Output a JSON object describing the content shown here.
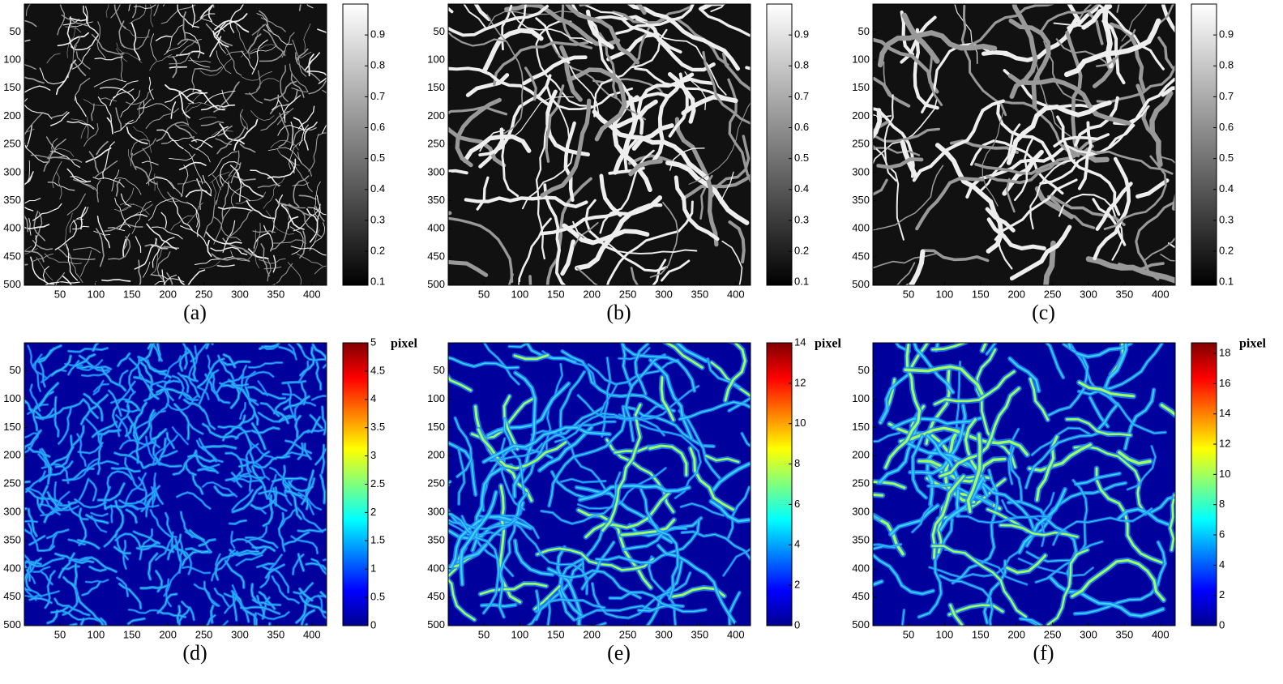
{
  "chart_data": [
    {
      "type": "heatmap",
      "label": "(a)",
      "colormap": "gray",
      "xlim": [
        0.5,
        420.5
      ],
      "ylim": [
        0.5,
        500.5
      ],
      "xticks": [
        50,
        100,
        150,
        200,
        250,
        300,
        350,
        400
      ],
      "yticks": [
        50,
        100,
        150,
        200,
        250,
        300,
        350,
        400,
        450,
        500
      ],
      "clim": [
        0.09,
        1
      ],
      "cticks": [
        0.1,
        0.2,
        0.3,
        0.4,
        0.5,
        0.6,
        0.7,
        0.8,
        0.9
      ]
    },
    {
      "type": "heatmap",
      "label": "(b)",
      "colormap": "gray",
      "xlim": [
        0.5,
        420.5
      ],
      "ylim": [
        0.5,
        500.5
      ],
      "xticks": [
        50,
        100,
        150,
        200,
        250,
        300,
        350,
        400
      ],
      "yticks": [
        50,
        100,
        150,
        200,
        250,
        300,
        350,
        400,
        450,
        500
      ],
      "clim": [
        0.09,
        1
      ],
      "cticks": [
        0.1,
        0.2,
        0.3,
        0.4,
        0.5,
        0.6,
        0.7,
        0.8,
        0.9
      ]
    },
    {
      "type": "heatmap",
      "label": "(c)",
      "colormap": "gray",
      "xlim": [
        0.5,
        420.5
      ],
      "ylim": [
        0.5,
        500.5
      ],
      "xticks": [
        50,
        100,
        150,
        200,
        250,
        300,
        350,
        400
      ],
      "yticks": [
        50,
        100,
        150,
        200,
        250,
        300,
        350,
        400,
        450,
        500
      ],
      "clim": [
        0.09,
        1
      ],
      "cticks": [
        0.1,
        0.2,
        0.3,
        0.4,
        0.5,
        0.6,
        0.7,
        0.8,
        0.9
      ]
    },
    {
      "type": "heatmap",
      "label": "(d)",
      "colormap": "jet",
      "colorbar_label": "pixel",
      "xlim": [
        0.5,
        420.5
      ],
      "ylim": [
        0.5,
        500.5
      ],
      "xticks": [
        50,
        100,
        150,
        200,
        250,
        300,
        350,
        400
      ],
      "yticks": [
        50,
        100,
        150,
        200,
        250,
        300,
        350,
        400,
        450,
        500
      ],
      "clim": [
        0,
        5
      ],
      "cticks": [
        0,
        0.5,
        1,
        1.5,
        2,
        2.5,
        3,
        3.5,
        4,
        4.5,
        5
      ]
    },
    {
      "type": "heatmap",
      "label": "(e)",
      "colormap": "jet",
      "colorbar_label": "pixel",
      "xlim": [
        0.5,
        420.5
      ],
      "ylim": [
        0.5,
        500.5
      ],
      "xticks": [
        50,
        100,
        150,
        200,
        250,
        300,
        350,
        400
      ],
      "yticks": [
        50,
        100,
        150,
        200,
        250,
        300,
        350,
        400,
        450,
        500
      ],
      "clim": [
        0,
        14
      ],
      "cticks": [
        0,
        2,
        4,
        6,
        8,
        10,
        12,
        14
      ]
    },
    {
      "type": "heatmap",
      "label": "(f)",
      "colormap": "jet",
      "colorbar_label": "pixel",
      "xlim": [
        0.5,
        420.5
      ],
      "ylim": [
        0.5,
        500.5
      ],
      "xticks": [
        50,
        100,
        150,
        200,
        250,
        300,
        350,
        400
      ],
      "yticks": [
        50,
        100,
        150,
        200,
        250,
        300,
        350,
        400,
        450,
        500
      ],
      "clim": [
        0,
        18.7
      ],
      "cticks": [
        0,
        2,
        4,
        6,
        8,
        10,
        12,
        14,
        16,
        18
      ]
    }
  ]
}
